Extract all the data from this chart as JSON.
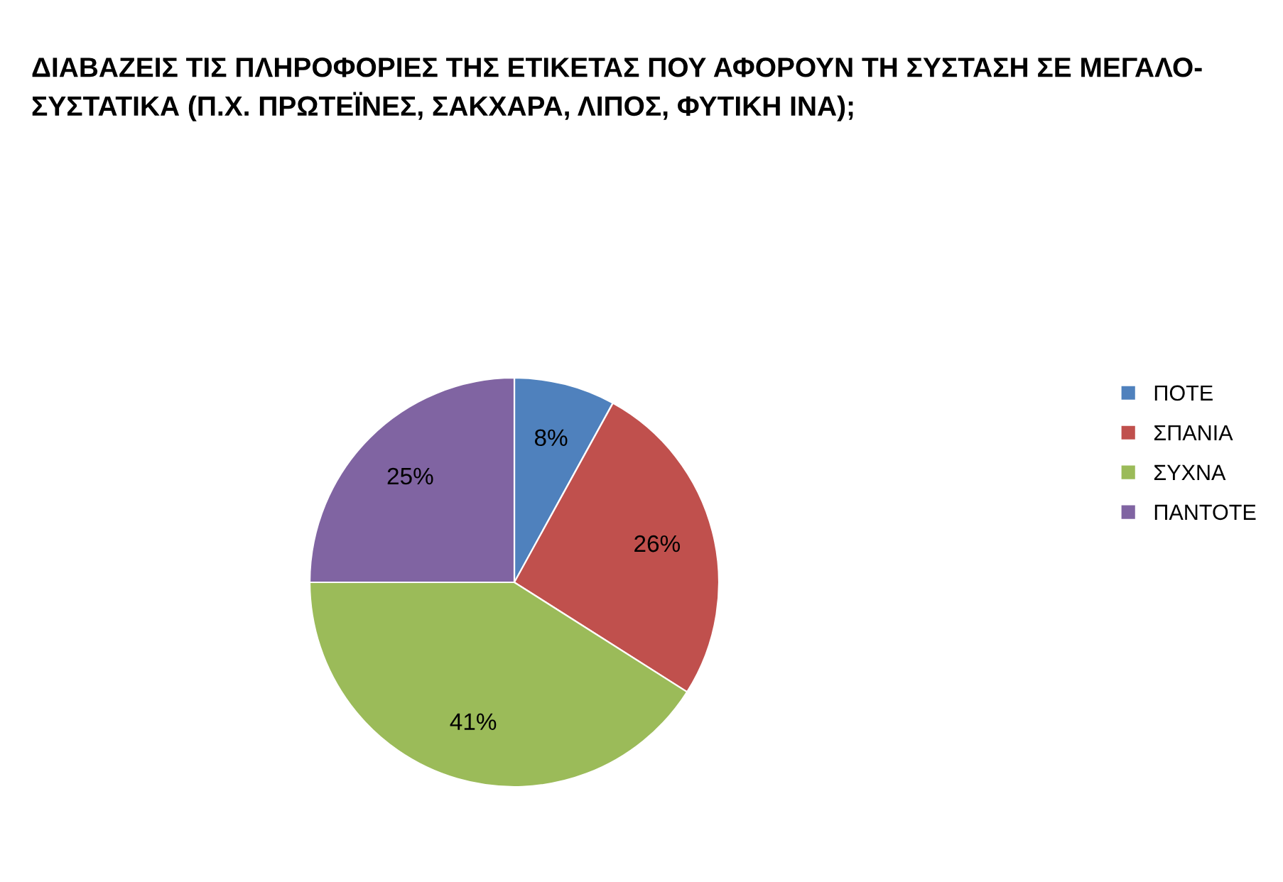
{
  "chart_data": {
    "type": "pie",
    "title": "ΔΙΑΒΑΖΕΙΣ ΤΙΣ ΠΛΗΡΟΦΟΡΙΕΣ ΤΗΣ ΕΤΙΚΕΤΑΣ ΠΟΥ ΑΦΟΡΟΥΝ ΤΗ ΣΥΣΤΑΣΗ ΣΕ ΜΕΓΑΛΟ-\nΣΥΣΤΑΤΙΚΑ (Π.Χ. ΠΡΩΤΕΪΝΕΣ, ΣΑΚΧΑΡΑ, ΛΙΠΟΣ, ΦΥΤΙΚΗ ΙΝΑ);",
    "categories": [
      "ΠΟΤΕ",
      "ΣΠΑΝΙΑ",
      "ΣΥΧΝΑ",
      "ΠΑΝΤΟΤΕ"
    ],
    "values": [
      8,
      26,
      41,
      25
    ],
    "value_labels": [
      "8%",
      "26%",
      "41%",
      "25%"
    ],
    "colors": [
      "#4f81bd",
      "#c0504d",
      "#9bbb59",
      "#8064a2"
    ],
    "legend": "right"
  }
}
